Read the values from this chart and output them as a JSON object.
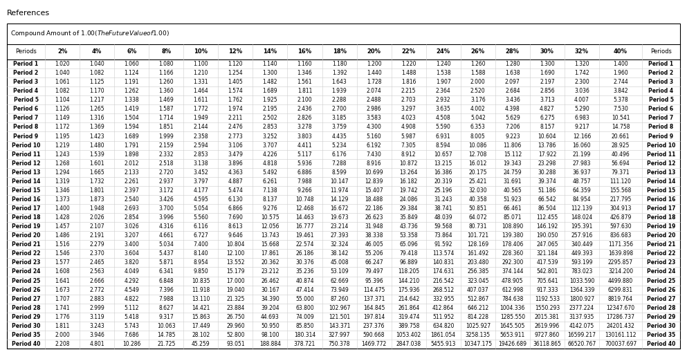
{
  "title": "Compound Amount of $1.00 (The Future Value of $1.00)",
  "col_headers": [
    "Periods",
    "2%",
    "4%",
    "6%",
    "8%",
    "10%",
    "12%",
    "14%",
    "16%",
    "18%",
    "20%",
    "22%",
    "24%",
    "26%",
    "28%",
    "30%",
    "32%",
    "40%",
    "Periods"
  ],
  "rows": [
    [
      "Period 1",
      "1.020",
      "1.040",
      "1.060",
      "1.080",
      "1.100",
      "1.120",
      "1.140",
      "1.160",
      "1.180",
      "1.200",
      "1.220",
      "1.240",
      "1.260",
      "1.280",
      "1.300",
      "1.320",
      "1.400",
      "Period 1"
    ],
    [
      "Period 2",
      "1.040",
      "1.082",
      "1.124",
      "1.166",
      "1.210",
      "1.254",
      "1.300",
      "1.346",
      "1.392",
      "1.440",
      "1.488",
      "1.538",
      "1.588",
      "1.638",
      "1.690",
      "1.742",
      "1.960",
      "Period 2"
    ],
    [
      "Period 3",
      "1.061",
      "1.125",
      "1.191",
      "1.260",
      "1.331",
      "1.405",
      "1.482",
      "1.561",
      "1.643",
      "1.728",
      "1.816",
      "1.907",
      "2.000",
      "2.097",
      "2.197",
      "2.300",
      "2.744",
      "Period 3"
    ],
    [
      "Period 4",
      "1.082",
      "1.170",
      "1.262",
      "1.360",
      "1.464",
      "1.574",
      "1.689",
      "1.811",
      "1.939",
      "2.074",
      "2.215",
      "2.364",
      "2.520",
      "2.684",
      "2.856",
      "3.036",
      "3.842",
      "Period 4"
    ],
    [
      "Period 5",
      "1.104",
      "1.217",
      "1.338",
      "1.469",
      "1.611",
      "1.762",
      "1.925",
      "2.100",
      "2.288",
      "2.488",
      "2.703",
      "2.932",
      "3.176",
      "3.436",
      "3.713",
      "4.007",
      "5.378",
      "Period 5"
    ],
    [
      "Period 6",
      "1.126",
      "1.265",
      "1.419",
      "1.587",
      "1.772",
      "1.974",
      "2.195",
      "2.436",
      "2.700",
      "2.986",
      "3.297",
      "3.635",
      "4.002",
      "4.398",
      "4.827",
      "5.290",
      "7.530",
      "Period 6"
    ],
    [
      "Period 7",
      "1.149",
      "1.316",
      "1.504",
      "1.714",
      "1.949",
      "2.211",
      "2.502",
      "2.826",
      "3.185",
      "3.583",
      "4.023",
      "4.508",
      "5.042",
      "5.629",
      "6.275",
      "6.983",
      "10.541",
      "Period 7"
    ],
    [
      "Period 8",
      "1.172",
      "1.369",
      "1.594",
      "1.851",
      "2.144",
      "2.476",
      "2.853",
      "3.278",
      "3.759",
      "4.300",
      "4.908",
      "5.590",
      "6.353",
      "7.206",
      "8.157",
      "9.217",
      "14.758",
      "Period 8"
    ],
    [
      "Period 9",
      "1.195",
      "1.423",
      "1.689",
      "1.999",
      "2.358",
      "2.773",
      "3.252",
      "3.803",
      "4.435",
      "5.160",
      "5.987",
      "6.931",
      "8.005",
      "9.223",
      "10.604",
      "12.166",
      "20.661",
      "Period 9"
    ],
    [
      "Period 10",
      "1.219",
      "1.480",
      "1.791",
      "2.159",
      "2.594",
      "3.106",
      "3.707",
      "4.411",
      "5.234",
      "6.192",
      "7.305",
      "8.594",
      "10.086",
      "11.806",
      "13.786",
      "16.060",
      "28.925",
      "Period 10"
    ],
    [
      "Period 11",
      "1.243",
      "1.539",
      "1.898",
      "2.332",
      "2.853",
      "3.479",
      "4.226",
      "5.117",
      "6.176",
      "7.430",
      "8.912",
      "10.657",
      "12.708",
      "15.112",
      "17.922",
      "21.199",
      "40.496",
      "Period 11"
    ],
    [
      "Period 12",
      "1.268",
      "1.601",
      "2.012",
      "2.518",
      "3.138",
      "3.896",
      "4.818",
      "5.936",
      "7.288",
      "8.916",
      "10.872",
      "13.215",
      "16.012",
      "19.343",
      "23.298",
      "27.983",
      "56.694",
      "Period 12"
    ],
    [
      "Period 13",
      "1.294",
      "1.665",
      "2.133",
      "2.720",
      "3.452",
      "4.363",
      "5.492",
      "6.886",
      "8.599",
      "10.699",
      "13.264",
      "16.386",
      "20.175",
      "24.759",
      "30.288",
      "36.937",
      "79.371",
      "Period 13"
    ],
    [
      "Period 14",
      "1.319",
      "1.732",
      "2.261",
      "2.937",
      "3.797",
      "4.887",
      "6.261",
      "7.988",
      "10.147",
      "12.839",
      "16.182",
      "20.319",
      "25.421",
      "31.691",
      "39.374",
      "48.757",
      "111.120",
      "Period 14"
    ],
    [
      "Period 15",
      "1.346",
      "1.801",
      "2.397",
      "3.172",
      "4.177",
      "5.474",
      "7.138",
      "9.266",
      "11.974",
      "15.407",
      "19.742",
      "25.196",
      "32.030",
      "40.565",
      "51.186",
      "64.359",
      "155.568",
      "Period 15"
    ],
    [
      "Period 16",
      "1.373",
      "1.873",
      "2.540",
      "3.426",
      "4.595",
      "6.130",
      "8.137",
      "10.748",
      "14.129",
      "18.488",
      "24.086",
      "31.243",
      "40.358",
      "51.923",
      "66.542",
      "84.954",
      "217.795",
      "Period 16"
    ],
    [
      "Period 17",
      "1.400",
      "1.948",
      "2.693",
      "3.700",
      "5.054",
      "6.866",
      "9.276",
      "12.468",
      "16.672",
      "22.186",
      "29.384",
      "38.741",
      "50.851",
      "66.461",
      "86.504",
      "112.139",
      "304.913",
      "Period 17"
    ],
    [
      "Period 18",
      "1.428",
      "2.026",
      "2.854",
      "3.996",
      "5.560",
      "7.690",
      "10.575",
      "14.463",
      "19.673",
      "26.623",
      "35.849",
      "48.039",
      "64.072",
      "85.071",
      "112.455",
      "148.024",
      "426.879",
      "Period 18"
    ],
    [
      "Period 19",
      "1.457",
      "2.107",
      "3.026",
      "4.316",
      "6.116",
      "8.613",
      "12.056",
      "16.777",
      "23.214",
      "31.948",
      "43.736",
      "59.568",
      "80.731",
      "108.890",
      "146.192",
      "195.391",
      "597.630",
      "Period 19"
    ],
    [
      "Period 20",
      "1.486",
      "2.191",
      "3.207",
      "4.661",
      "6.727",
      "9.646",
      "13.743",
      "19.461",
      "27.393",
      "38.338",
      "53.358",
      "73.864",
      "101.721",
      "139.380",
      "190.050",
      "257.916",
      "836.683",
      "Period 20"
    ],
    [
      "Period 21",
      "1.516",
      "2.279",
      "3.400",
      "5.034",
      "7.400",
      "10.804",
      "15.668",
      "22.574",
      "32.324",
      "46.005",
      "65.096",
      "91.592",
      "128.169",
      "178.406",
      "247.065",
      "340.449",
      "1171.356",
      "Period 21"
    ],
    [
      "Period 22",
      "1.546",
      "2.370",
      "3.604",
      "5.437",
      "8.140",
      "12.100",
      "17.861",
      "26.186",
      "38.142",
      "55.206",
      "79.418",
      "113.574",
      "161.492",
      "228.360",
      "321.184",
      "449.393",
      "1639.898",
      "Period 22"
    ],
    [
      "Period 23",
      "1.577",
      "2.465",
      "3.820",
      "5.871",
      "8.954",
      "13.552",
      "20.362",
      "30.376",
      "45.008",
      "66.247",
      "96.889",
      "140.831",
      "203.480",
      "292.300",
      "417.539",
      "593.199",
      "2295.857",
      "Period 23"
    ],
    [
      "Period 24",
      "1.608",
      "2.563",
      "4.049",
      "6.341",
      "9.850",
      "15.179",
      "23.212",
      "35.236",
      "53.109",
      "79.497",
      "118.205",
      "174.631",
      "256.385",
      "374.144",
      "542.801",
      "783.023",
      "3214.200",
      "Period 24"
    ],
    [
      "Period 25",
      "1.641",
      "2.666",
      "4.292",
      "6.848",
      "10.835",
      "17.000",
      "26.462",
      "40.874",
      "62.669",
      "95.396",
      "144.210",
      "216.542",
      "323.045",
      "478.905",
      "705.641",
      "1033.590",
      "4499.880",
      "Period 25"
    ],
    [
      "Period 26",
      "1.673",
      "2.772",
      "4.549",
      "7.396",
      "11.918",
      "19.040",
      "30.167",
      "47.414",
      "73.949",
      "114.475",
      "175.936",
      "268.512",
      "407.037",
      "612.998",
      "917.333",
      "1364.339",
      "6299.831",
      "Period 26"
    ],
    [
      "Period 27",
      "1.707",
      "2.883",
      "4.822",
      "7.988",
      "13.110",
      "21.325",
      "34.390",
      "55.000",
      "87.260",
      "137.371",
      "214.642",
      "332.955",
      "512.867",
      "784.638",
      "1192.533",
      "1800.927",
      "8819.764",
      "Period 27"
    ],
    [
      "Period 28",
      "1.741",
      "2.999",
      "5.112",
      "8.627",
      "14.421",
      "23.884",
      "39.204",
      "63.800",
      "102.967",
      "164.845",
      "261.864",
      "412.864",
      "646.212",
      "1004.336",
      "1550.293",
      "2377.224",
      "12347.670",
      "Period 28"
    ],
    [
      "Period 29",
      "1.776",
      "3.119",
      "5.418",
      "9.317",
      "15.863",
      "26.750",
      "44.693",
      "74.009",
      "121.501",
      "197.814",
      "319.474",
      "511.952",
      "814.228",
      "1285.550",
      "2015.381",
      "3137.935",
      "17286.737",
      "Period 29"
    ],
    [
      "Period 30",
      "1.811",
      "3.243",
      "5.743",
      "10.063",
      "17.449",
      "29.960",
      "50.950",
      "85.850",
      "143.371",
      "237.376",
      "389.758",
      "634.820",
      "1025.927",
      "1645.505",
      "2619.996",
      "4142.075",
      "24201.432",
      "Period 30"
    ],
    [
      "Period 35",
      "2.000",
      "3.946",
      "7.686",
      "14.785",
      "28.102",
      "52.800",
      "98.100",
      "180.314",
      "327.997",
      "590.668",
      "1053.402",
      "1861.054",
      "3258.135",
      "5653.911",
      "9727.860",
      "16599.217",
      "130161.112",
      "Period 35"
    ],
    [
      "Period 40",
      "2.208",
      "4.801",
      "10.286",
      "21.725",
      "45.259",
      "93.051",
      "188.884",
      "378.721",
      "750.378",
      "1469.772",
      "2847.038",
      "5455.913",
      "10347.175",
      "19426.689",
      "36118.865",
      "66520.767",
      "700037.697",
      "Period 40"
    ]
  ],
  "bg_color": "#ffffff",
  "border_color": "#000000",
  "header_line_color": "#000000",
  "row_line_color": "#cccccc",
  "col_line_color": "#cccccc",
  "title_fontsize": 6.5,
  "header_fontsize": 6.0,
  "data_fontsize": 5.5,
  "fig_width": 9.93,
  "fig_height": 5.09
}
